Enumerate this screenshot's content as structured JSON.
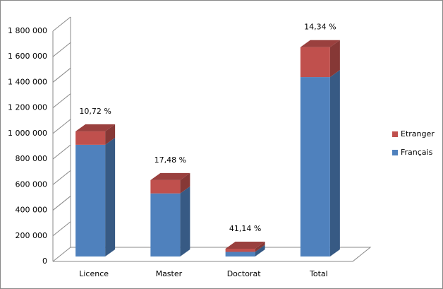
{
  "chart_data": {
    "type": "bar3d_stacked",
    "categories": [
      "Licence",
      "Master",
      "Doctorat",
      "Total"
    ],
    "series": [
      {
        "name": "Français",
        "color": "#4f81bd",
        "values": [
          873000,
          493000,
          36000,
          1402000
        ]
      },
      {
        "name": "Etranger",
        "color": "#c0504d",
        "values": [
          105000,
          104000,
          25000,
          234000
        ]
      }
    ],
    "annotations": [
      "10,72 %",
      "17,48 %",
      "41,14 %",
      "14,34 %"
    ],
    "ylim": [
      0,
      1800000
    ],
    "yticks": [
      0,
      {
        "value": 200000,
        "label": "200 000"
      },
      {
        "value": 400000,
        "label": "400 000"
      },
      {
        "value": 600000,
        "label": "600 000"
      },
      {
        "value": 800000,
        "label": "800 000"
      },
      {
        "value": 1000000,
        "label": "1 000 000"
      },
      {
        "value": 1200000,
        "label": "1 200 000"
      },
      {
        "value": 1400000,
        "label": "1 400 000"
      },
      {
        "value": 1600000,
        "label": "1 600 000"
      },
      {
        "value": 1800000,
        "label": "1 800 000"
      }
    ],
    "legend": "right"
  }
}
